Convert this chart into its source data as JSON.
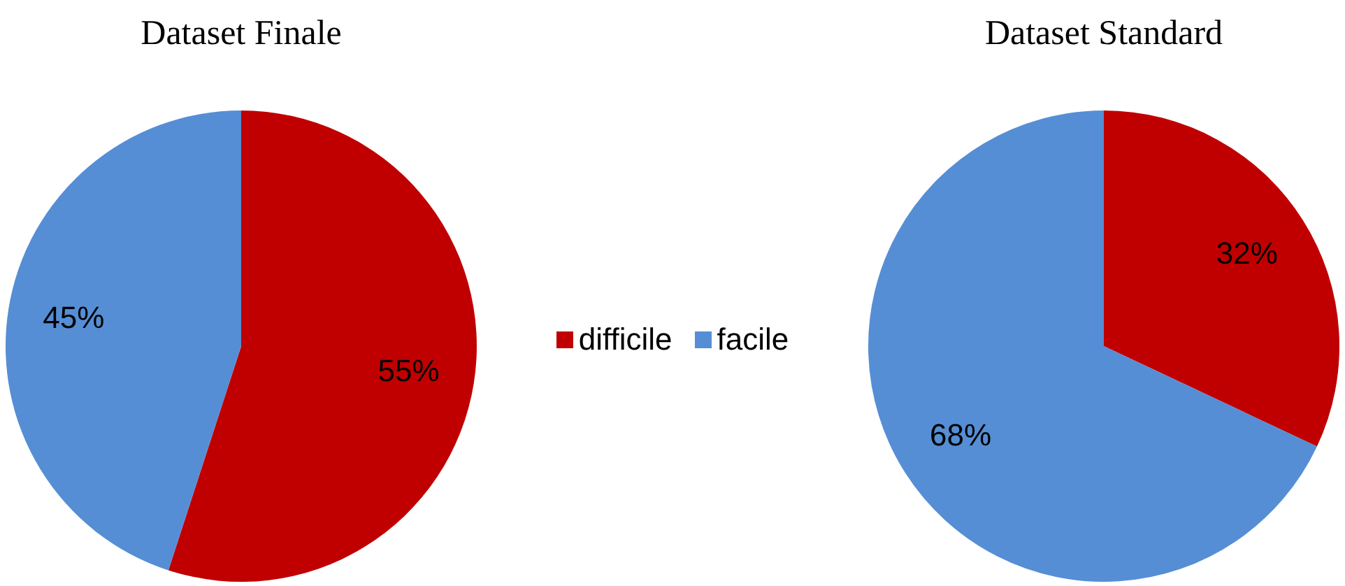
{
  "chart_data": [
    {
      "type": "pie",
      "title": "Dataset Finale",
      "categories": [
        "difficile",
        "facile"
      ],
      "values": [
        55,
        45
      ],
      "value_labels": [
        "55%",
        "45%"
      ],
      "colors": [
        "#c00000",
        "#558ed5"
      ],
      "legend": "right"
    },
    {
      "type": "pie",
      "title": "Dataset Standard",
      "categories": [
        null,
        null
      ],
      "values": [
        32,
        68
      ],
      "value_labels": [
        "32%",
        "68%"
      ],
      "colors": [
        "#c00000",
        "#558ed5"
      ]
    }
  ]
}
